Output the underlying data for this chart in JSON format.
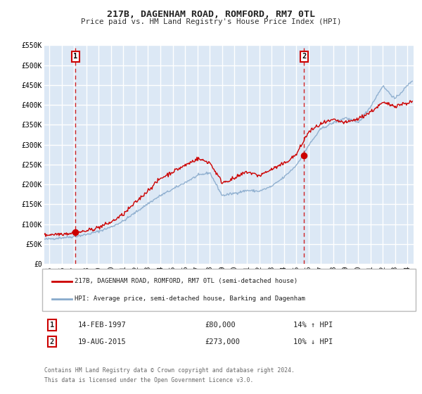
{
  "title": "217B, DAGENHAM ROAD, ROMFORD, RM7 0TL",
  "subtitle": "Price paid vs. HM Land Registry's House Price Index (HPI)",
  "bg_color": "#dce8f5",
  "plot_bg_color": "#dce8f5",
  "fig_bg_color": "#ffffff",
  "grid_color": "#ffffff",
  "line1_color": "#cc0000",
  "line2_color": "#88aacc",
  "ylim": [
    0,
    550000
  ],
  "yticks": [
    0,
    50000,
    100000,
    150000,
    200000,
    250000,
    300000,
    350000,
    400000,
    450000,
    500000,
    550000
  ],
  "ytick_labels": [
    "£0",
    "£50K",
    "£100K",
    "£150K",
    "£200K",
    "£250K",
    "£300K",
    "£350K",
    "£400K",
    "£450K",
    "£500K",
    "£550K"
  ],
  "xlim_start": 1994.6,
  "xlim_end": 2024.5,
  "xticks": [
    1995,
    1996,
    1997,
    1998,
    1999,
    2000,
    2001,
    2002,
    2003,
    2004,
    2005,
    2006,
    2007,
    2008,
    2009,
    2010,
    2011,
    2012,
    2013,
    2014,
    2015,
    2016,
    2017,
    2018,
    2019,
    2020,
    2021,
    2022,
    2023,
    2024
  ],
  "sale1_x": 1997.12,
  "sale1_y": 80000,
  "sale1_label": "1",
  "sale1_date": "14-FEB-1997",
  "sale1_price": "£80,000",
  "sale1_hpi": "14% ↑ HPI",
  "sale2_x": 2015.63,
  "sale2_y": 273000,
  "sale2_label": "2",
  "sale2_date": "19-AUG-2015",
  "sale2_price": "£273,000",
  "sale2_hpi": "10% ↓ HPI",
  "legend1_label": "217B, DAGENHAM ROAD, ROMFORD, RM7 0TL (semi-detached house)",
  "legend2_label": "HPI: Average price, semi-detached house, Barking and Dagenham",
  "footer1": "Contains HM Land Registry data © Crown copyright and database right 2024.",
  "footer2": "This data is licensed under the Open Government Licence v3.0."
}
